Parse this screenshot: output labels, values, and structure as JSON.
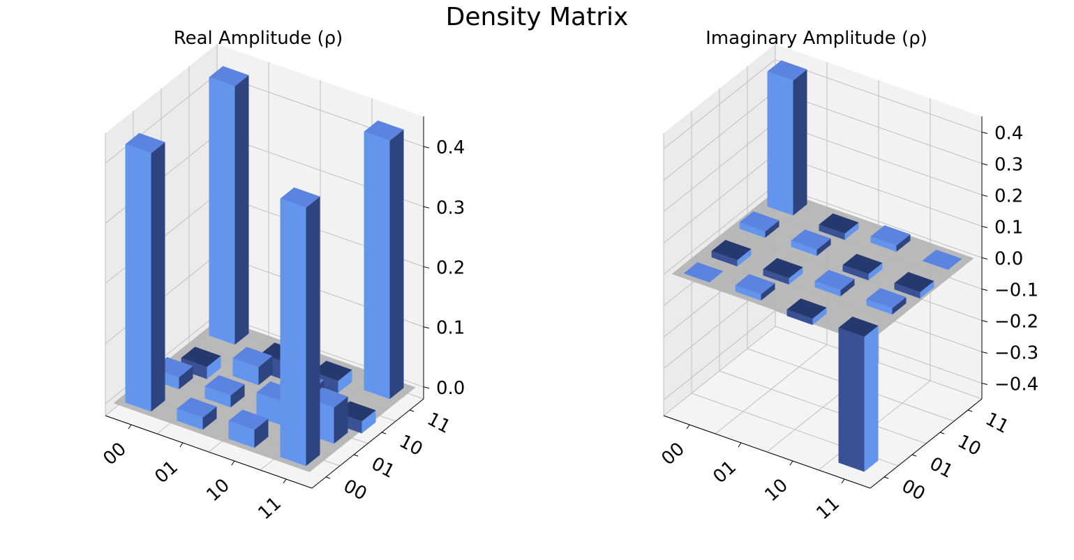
{
  "figure": {
    "title": "Density Matrix"
  },
  "colors": {
    "light": "#6495ED",
    "lightTop": "#5B83E0",
    "lightSide": "#3C63CF",
    "dark": "#2E4480",
    "darkTop": "#26396E",
    "darkFront": "#3A5196",
    "pane": "#F2F2F2",
    "pane2": "#EBEBEB",
    "floor": "#B3B3B3",
    "grid": "#BFBFBF"
  },
  "chart_data": [
    {
      "type": "bar3d",
      "title": "Real Amplitude (ρ)",
      "row_labels": [
        "00",
        "01",
        "10",
        "11"
      ],
      "col_labels": [
        "00",
        "01",
        "10",
        "11"
      ],
      "zlim": [
        -0.02,
        0.45
      ],
      "zticks": [
        "0.0",
        "0.1",
        "0.2",
        "0.3",
        "0.4"
      ],
      "matrix": [
        [
          0.43,
          0.02,
          -0.02,
          0.43
        ],
        [
          0.02,
          0.02,
          0.03,
          -0.03
        ],
        [
          0.03,
          0.04,
          0.02,
          -0.02
        ],
        [
          0.43,
          0.06,
          -0.02,
          0.43
        ]
      ]
    },
    {
      "type": "bar3d",
      "title": "Imaginary Amplitude (ρ)",
      "row_labels": [
        "00",
        "01",
        "10",
        "11"
      ],
      "col_labels": [
        "00",
        "01",
        "10",
        "11"
      ],
      "zlim": [
        -0.45,
        0.45
      ],
      "zticks": [
        "0.4",
        "0.3",
        "0.2",
        "0.1",
        "0.0",
        "−0.1",
        "−0.2",
        "−0.3",
        "−0.4"
      ],
      "matrix": [
        [
          0.0,
          -0.02,
          0.02,
          0.43
        ],
        [
          0.02,
          -0.02,
          0.02,
          -0.02
        ],
        [
          -0.02,
          0.02,
          -0.02,
          0.02
        ],
        [
          -0.43,
          0.02,
          -0.02,
          0.0
        ]
      ]
    }
  ]
}
